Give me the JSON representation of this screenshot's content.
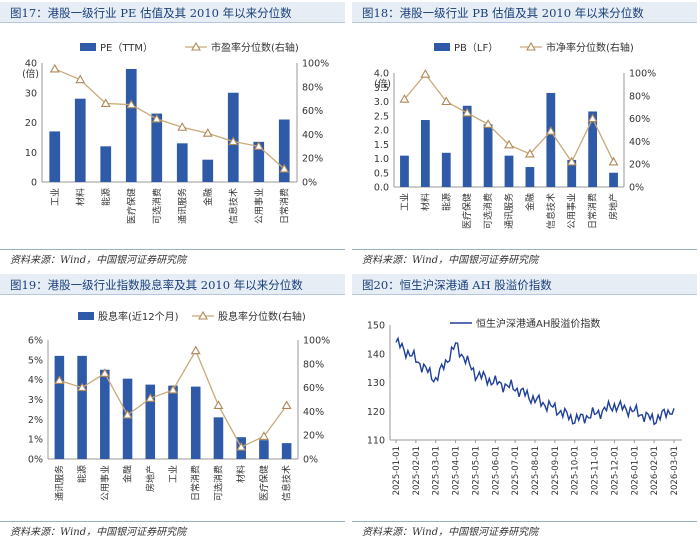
{
  "source": "资料来源：Wind，中国银河证券研究院",
  "colors": {
    "bar": "#2e5aa8",
    "line": "#c9a97a",
    "marker": "#b08858",
    "ah_line": "#1f3f99",
    "title": "#1a3f7a"
  },
  "chart_data": [
    {
      "type": "bar",
      "title": "图17：港股一级行业 PE 估值及其 2010 年以来分位数",
      "left_unit": "(倍)",
      "categories": [
        "工业",
        "材料",
        "能源",
        "医疗保健",
        "可选消费",
        "通讯服务",
        "金融",
        "信息技术",
        "公用事业",
        "日常消费"
      ],
      "series": [
        {
          "name": "PE（TTM）",
          "axis": "left",
          "kind": "bar",
          "values": [
            17,
            28,
            12,
            38,
            23,
            13,
            7.5,
            30,
            13.5,
            21
          ]
        },
        {
          "name": "市盈率分位数(右轴)",
          "axis": "right",
          "kind": "line",
          "values": [
            95,
            86,
            66,
            65,
            53,
            46,
            41,
            34,
            30,
            11
          ]
        }
      ],
      "ylim": [
        0,
        40
      ],
      "yticks": [
        "0",
        "10",
        "20",
        "30",
        "40"
      ],
      "y2lim": [
        0,
        100
      ],
      "y2ticks": [
        "0%",
        "20%",
        "40%",
        "60%",
        "80%",
        "100%"
      ]
    },
    {
      "type": "bar",
      "title": "图18：港股一级行业 PB 估值及其 2010 年以来分位数",
      "left_unit": "(倍)",
      "categories": [
        "工业",
        "材料",
        "能源",
        "医疗保健",
        "可选消费",
        "通讯服务",
        "金融",
        "信息技术",
        "公用事业",
        "日常消费",
        "房地产"
      ],
      "series": [
        {
          "name": "PB（LF）",
          "axis": "left",
          "kind": "bar",
          "values": [
            1.1,
            2.35,
            1.2,
            2.85,
            2.2,
            1.1,
            0.7,
            3.3,
            0.95,
            2.65,
            0.5
          ]
        },
        {
          "name": "市净率分位数(右轴)",
          "axis": "right",
          "kind": "line",
          "values": [
            77,
            99,
            75,
            65,
            55,
            37,
            29,
            49,
            22,
            60,
            22
          ]
        }
      ],
      "ylim": [
        0,
        4
      ],
      "yticks": [
        "0.0",
        "0.5",
        "1.0",
        "1.5",
        "2.0",
        "2.5",
        "3.0",
        "3.5",
        "4.0"
      ],
      "y2lim": [
        0,
        100
      ],
      "y2ticks": [
        "0%",
        "20%",
        "40%",
        "60%",
        "80%",
        "100%"
      ]
    },
    {
      "type": "bar",
      "title": "图19：港股一级行业指数股息率及其 2010 年以来分位数",
      "categories": [
        "通讯服务",
        "能源",
        "公用事业",
        "金融",
        "房地产",
        "工业",
        "日常消费",
        "可选消费",
        "材料",
        "医疗保健",
        "信息技术"
      ],
      "series": [
        {
          "name": "股息率(近12个月)",
          "axis": "left",
          "kind": "bar",
          "values": [
            5.2,
            5.2,
            4.5,
            4.05,
            3.75,
            3.7,
            3.65,
            2.1,
            1.1,
            0.95,
            0.8
          ]
        },
        {
          "name": "股息率分位数(右轴)",
          "axis": "right",
          "kind": "line",
          "values": [
            66,
            60,
            72,
            37,
            51,
            58,
            91,
            45,
            10,
            19,
            45
          ]
        }
      ],
      "ylim": [
        0,
        6
      ],
      "yticks": [
        "0%",
        "1%",
        "2%",
        "3%",
        "4%",
        "5%",
        "6%"
      ],
      "y2lim": [
        0,
        100
      ],
      "y2ticks": [
        "0%",
        "20%",
        "40%",
        "60%",
        "80%",
        "100%"
      ]
    },
    {
      "type": "line",
      "title": "图20：恒生沪深港通 AH 股溢价指数",
      "series_name": "恒生沪深港通AH股溢价指数",
      "x": [
        "2025-01-01",
        "2025-02-01",
        "2025-03-01",
        "2025-04-01",
        "2025-05-01",
        "2025-06-01",
        "2025-07-01",
        "2025-08-01",
        "2025-09-01",
        "2025-10-01",
        "2025-11-01",
        "2025-12-01",
        "2026-01-01",
        "2026-02-01",
        "2026-03-01"
      ],
      "values": [
        144,
        138,
        131,
        143,
        133,
        130,
        128,
        124,
        121,
        117,
        119,
        122,
        120,
        117,
        121
      ],
      "ylim": [
        110,
        150
      ],
      "yticks": [
        "110",
        "120",
        "130",
        "140",
        "150"
      ]
    }
  ]
}
